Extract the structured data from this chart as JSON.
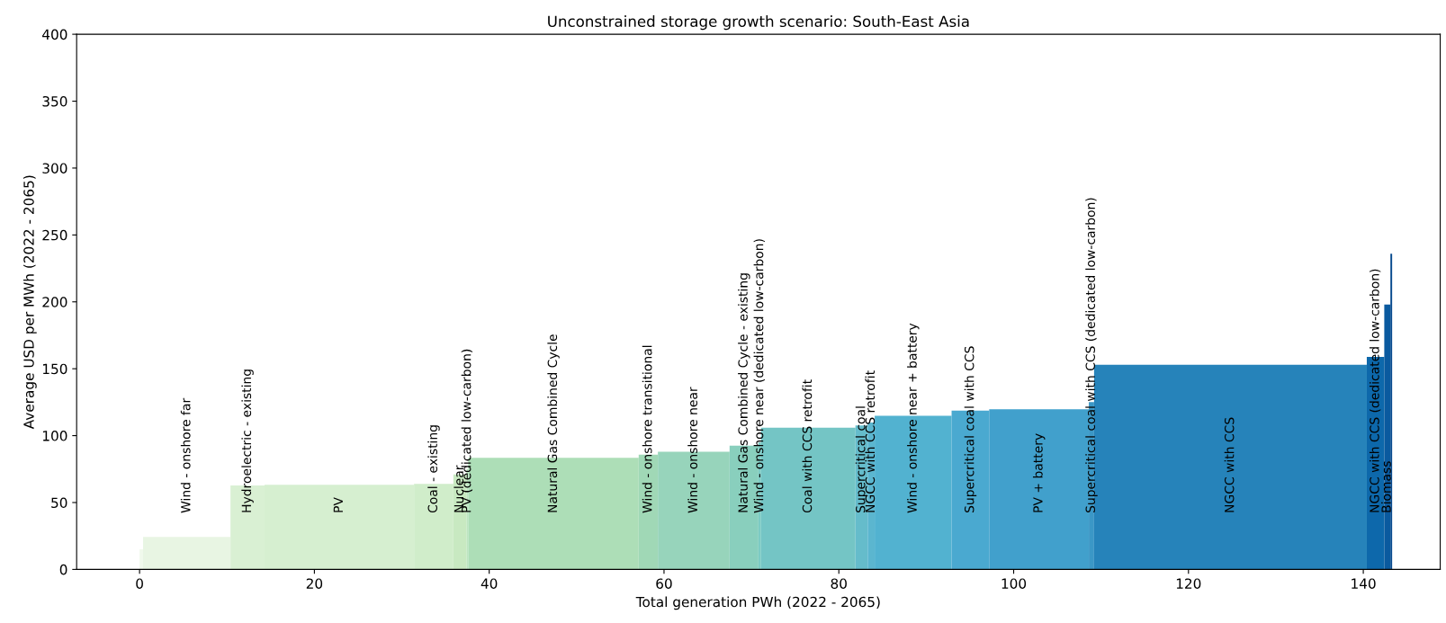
{
  "chart_data": {
    "type": "histogram",
    "title": "Unconstrained storage growth scenario: South-East Asia",
    "xlabel": "Total generation PWh (2022 - 2065)",
    "ylabel": "Average USD per MWh (2022 - 2065)",
    "bins": [
      0,
      0.4,
      10.4,
      14.3,
      31.4,
      35.9,
      37.4,
      37.6,
      57.1,
      59.3,
      67.5,
      70.8,
      71.1,
      81.9,
      83.3,
      84.1,
      92.9,
      97.2,
      108.6,
      109.2,
      140.4,
      142.4,
      143.1,
      143.3
    ],
    "values": [
      15,
      24.3,
      62.8,
      63.2,
      64,
      71,
      75,
      83.4,
      85.8,
      87.9,
      92.5,
      95,
      106,
      107.6,
      109.8,
      114.8,
      118.7,
      119.7,
      125,
      152.9,
      158.8,
      198,
      236
    ],
    "colors": [
      "#f0f9ec",
      "#e8f5e3",
      "#d9f0d3",
      "#d6efd0",
      "#d0edca",
      "#c8e9c1",
      "#bde5bf",
      "#addeb7",
      "#a0d8b6",
      "#97d4bb",
      "#89cfbd",
      "#7ccbc4",
      "#74c5c5",
      "#65bccb",
      "#5bb6cf",
      "#52b2d0",
      "#4aa9d0",
      "#41a0cc",
      "#3b97c6",
      "#2683ba",
      "#0d68ab",
      "#0a5a9f",
      "#084a8e"
    ],
    "categories": [
      null,
      "Wind - onshore far",
      "Hydroelectric - existing",
      "PV",
      "Coal - existing",
      "Nuclear",
      "PV (dedicated low-carbon)",
      "Natural Gas Combined Cycle",
      "Wind - onshore transitional",
      "Wind - onshore near",
      "Natural Gas Combined Cycle - existing",
      "Wind - onshore near (dedicated low-carbon)",
      "Coal with CCS retrofit",
      "Supercritical coal",
      "NGCC with CCS retrofit",
      "Wind - onshore near + battery",
      "Supercritical coal with CCS",
      "PV + battery",
      "Supercritical coal with CCS (dedicated low-carbon)",
      "NGCC with CCS",
      "NGCC with CCS (dedicated low-carbon)",
      "Biomass",
      null
    ],
    "xlim": [
      -7.2,
      148.8
    ],
    "ylim": [
      0,
      400
    ],
    "xticks": [
      0,
      20,
      40,
      60,
      80,
      100,
      120,
      140
    ],
    "yticks": [
      0,
      50,
      100,
      150,
      200,
      250,
      300,
      350,
      400
    ],
    "grid": false
  }
}
